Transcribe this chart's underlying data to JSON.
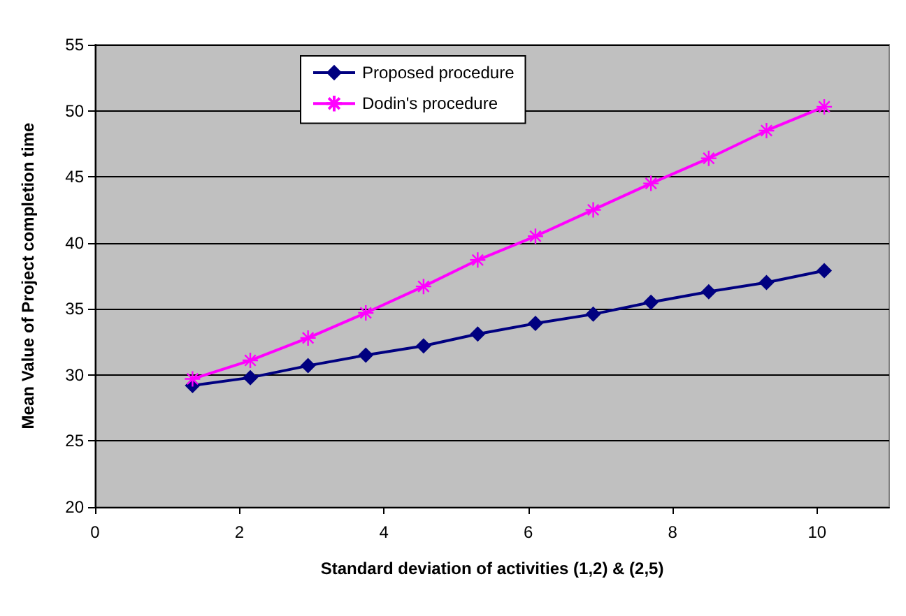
{
  "chart_data": {
    "type": "line",
    "xlabel": "Standard deviation of activities (1,2) & (2,5)",
    "ylabel": "Mean Value of Project completion time",
    "x": [
      1.35,
      2.15,
      2.95,
      3.75,
      4.55,
      5.3,
      6.1,
      6.9,
      7.7,
      8.5,
      9.3,
      10.1
    ],
    "series": [
      {
        "name": "Proposed procedure",
        "color": "#000080",
        "marker": "diamond",
        "values": [
          29.2,
          29.8,
          30.7,
          31.5,
          32.2,
          33.1,
          33.9,
          34.6,
          35.5,
          36.3,
          37.0,
          37.9
        ]
      },
      {
        "name": "Dodin's procedure",
        "color": "#ff00ff",
        "marker": "cross",
        "values": [
          29.7,
          31.1,
          32.8,
          34.7,
          36.7,
          38.7,
          40.5,
          42.5,
          44.5,
          46.4,
          48.5,
          50.3
        ]
      }
    ],
    "xlim": [
      0,
      11
    ],
    "xticks": [
      0,
      2,
      4,
      6,
      8,
      10
    ],
    "ylim": [
      20,
      55
    ],
    "yticks": [
      20,
      25,
      30,
      35,
      40,
      45,
      50,
      55
    ],
    "grid": "y",
    "legend": "top",
    "line_style": "solid"
  }
}
